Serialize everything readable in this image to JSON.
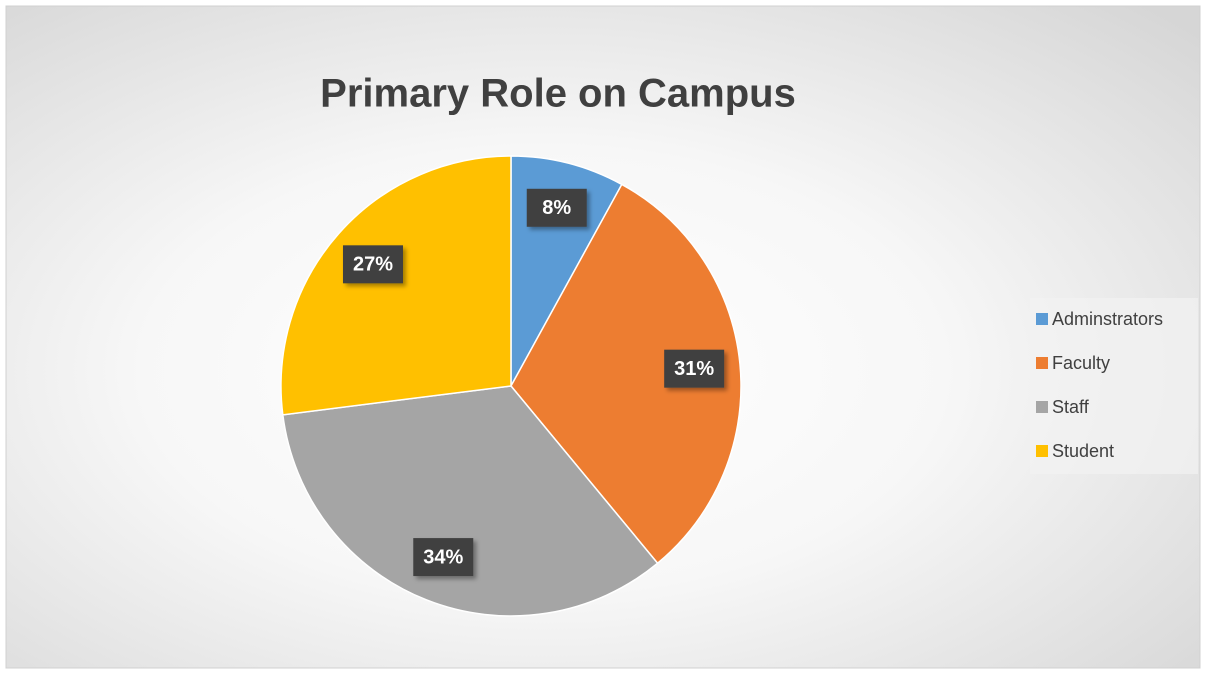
{
  "chart_data": {
    "type": "pie",
    "title": "Primary Role on Campus",
    "categories": [
      "Adminstrators",
      "Faculty",
      "Staff",
      "Student"
    ],
    "values": [
      8,
      31,
      34,
      27
    ],
    "value_labels": [
      "8%",
      "31%",
      "34%",
      "27%"
    ],
    "colors": [
      "#5b9bd5",
      "#ed7d31",
      "#a5a5a5",
      "#ffc000"
    ],
    "legend": "right"
  }
}
